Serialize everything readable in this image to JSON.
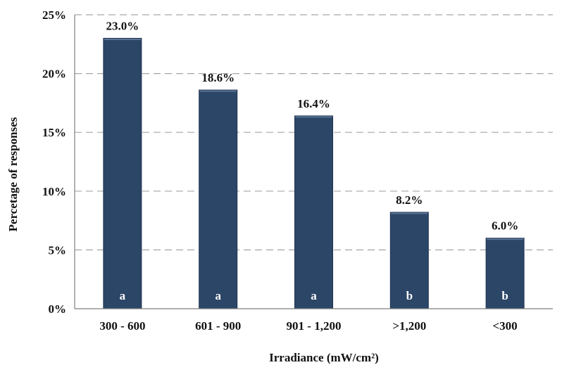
{
  "chart_data": {
    "type": "bar",
    "categories": [
      "300 - 600",
      "601 - 900",
      "901 - 1,200",
      ">1,200",
      "<300"
    ],
    "values": [
      23.0,
      18.6,
      16.4,
      8.2,
      6.0
    ],
    "value_labels": [
      "23.0%",
      "18.6%",
      "16.4%",
      "8.2%",
      "6.0%"
    ],
    "group_letters": [
      "a",
      "a",
      "a",
      "b",
      "b"
    ],
    "xlabel": "Irradiance (mW/cm²)",
    "ylabel": "Percetage of responses",
    "ylim": [
      0,
      25
    ],
    "yticks": [
      "0%",
      "5%",
      "10%",
      "15%",
      "20%",
      "25%"
    ],
    "grid": "horizontal dashed",
    "legend": "none",
    "colors": {
      "bar": "#2c4668",
      "bar_edge": "#1e3350",
      "grid": "#a6a6a6",
      "axis": "#7f7f7f",
      "letter": "#ffffff"
    }
  }
}
